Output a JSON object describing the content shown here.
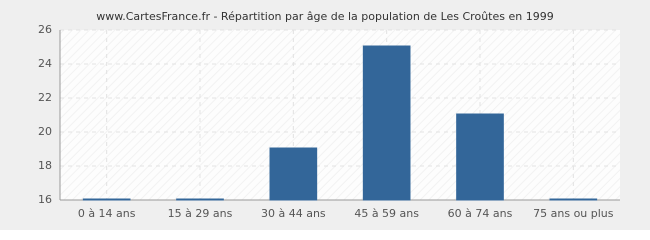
{
  "chart_data": {
    "type": "bar",
    "title": "www.CartesFrance.fr - Répartition par âge de la population de Les Croûtes en 1999",
    "categories": [
      "0 à 14 ans",
      "15 à 29 ans",
      "30 à 44 ans",
      "45 à 59 ans",
      "60 à 74 ans",
      "75 ans ou plus"
    ],
    "values": [
      16,
      16,
      19,
      25,
      21,
      16
    ],
    "color": "#336699",
    "ylim": [
      16,
      26
    ],
    "yticks": [
      16,
      18,
      20,
      22,
      24,
      26
    ],
    "grid": true
  }
}
